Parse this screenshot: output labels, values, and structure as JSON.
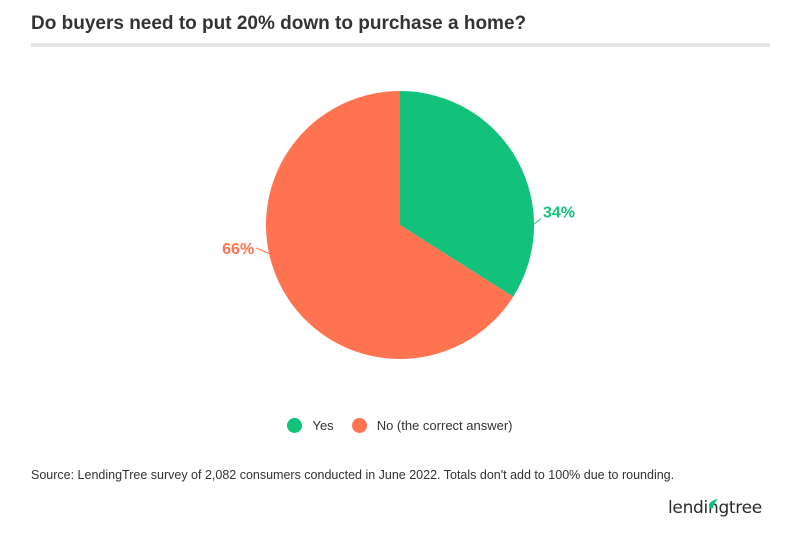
{
  "title": "Do buyers need to put 20% down to purchase a home?",
  "source": "Source: LendingTree survey of 2,082 consumers conducted in June 2022. Totals don't add to 100% due to rounding.",
  "logo": {
    "text": "lendingtree",
    "icon": "leaf-icon"
  },
  "colors": {
    "yes": "#12c27b",
    "no": "#ff7350",
    "rule": "#e6e6e6"
  },
  "chart_data": {
    "type": "pie",
    "title": "Do buyers need to put 20% down to purchase a home?",
    "categories": [
      "Yes",
      "No (the correct answer)"
    ],
    "values": [
      34,
      66
    ],
    "data_labels": [
      "34%",
      "66%"
    ],
    "colors": [
      "#12c27b",
      "#ff7350"
    ],
    "start_angle": "12 o'clock, clockwise",
    "legend": "bottom-center"
  }
}
